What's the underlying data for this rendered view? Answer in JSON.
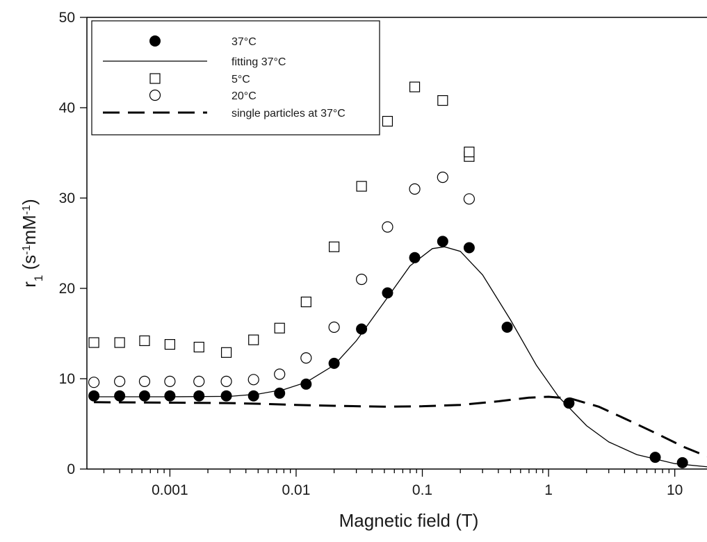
{
  "chart_data": {
    "type": "scatter",
    "xlabel": "Magnetic field (T)",
    "ylabel_parts": {
      "main": "r",
      "sub": "1",
      "unit_open": " (s",
      "unit_sup1": "-1",
      "unit_mid": "mM",
      "unit_sup2": "-1",
      "unit_close": ")"
    },
    "xscale": "log",
    "xlim": [
      0.00022,
      18
    ],
    "ylim": [
      0,
      50
    ],
    "x_ticks": [
      {
        "value": 0.001,
        "label": "0.001"
      },
      {
        "value": 0.01,
        "label": "0.01"
      },
      {
        "value": 0.1,
        "label": "0.1"
      },
      {
        "value": 1,
        "label": "1"
      },
      {
        "value": 10,
        "label": "10"
      }
    ],
    "y_ticks": [
      {
        "value": 0,
        "label": "0"
      },
      {
        "value": 10,
        "label": "10"
      },
      {
        "value": 20,
        "label": "20"
      },
      {
        "value": 30,
        "label": "30"
      },
      {
        "value": 40,
        "label": "40"
      },
      {
        "value": 50,
        "label": "50"
      }
    ],
    "legend_position": "top-left",
    "grid": false,
    "series": [
      {
        "name": "37°C",
        "marker": "filled-circle",
        "points": [
          [
            0.00025,
            8.1
          ],
          [
            0.0004,
            8.1
          ],
          [
            0.00063,
            8.1
          ],
          [
            0.001,
            8.1
          ],
          [
            0.0017,
            8.1
          ],
          [
            0.0028,
            8.1
          ],
          [
            0.0046,
            8.1
          ],
          [
            0.0074,
            8.4
          ],
          [
            0.012,
            9.4
          ],
          [
            0.02,
            11.7
          ],
          [
            0.033,
            15.5
          ],
          [
            0.053,
            19.5
          ],
          [
            0.087,
            23.4
          ],
          [
            0.145,
            25.2
          ],
          [
            0.235,
            24.5
          ],
          [
            0.47,
            15.7
          ],
          [
            1.45,
            7.3
          ],
          [
            7.0,
            1.3
          ],
          [
            11.5,
            0.7
          ]
        ]
      },
      {
        "name": "fitting 37°C",
        "marker": "solid-line",
        "points": [
          [
            0.00025,
            8.0
          ],
          [
            0.001,
            8.0
          ],
          [
            0.003,
            8.05
          ],
          [
            0.005,
            8.3
          ],
          [
            0.008,
            8.8
          ],
          [
            0.012,
            9.6
          ],
          [
            0.02,
            11.5
          ],
          [
            0.03,
            14.2
          ],
          [
            0.05,
            18.5
          ],
          [
            0.08,
            22.5
          ],
          [
            0.12,
            24.4
          ],
          [
            0.15,
            24.6
          ],
          [
            0.2,
            24.1
          ],
          [
            0.3,
            21.5
          ],
          [
            0.5,
            16.5
          ],
          [
            0.8,
            11.5
          ],
          [
            1.2,
            8.0
          ],
          [
            2.0,
            4.8
          ],
          [
            3.0,
            3.0
          ],
          [
            5.0,
            1.6
          ],
          [
            10.0,
            0.6
          ],
          [
            18.0,
            0.25
          ]
        ]
      },
      {
        "name": "5°C",
        "marker": "open-square",
        "points": [
          [
            0.00025,
            14.0
          ],
          [
            0.0004,
            14.0
          ],
          [
            0.00063,
            14.2
          ],
          [
            0.001,
            13.8
          ],
          [
            0.0017,
            13.5
          ],
          [
            0.0028,
            12.9
          ],
          [
            0.0046,
            14.3
          ],
          [
            0.0074,
            15.6
          ],
          [
            0.012,
            18.5
          ],
          [
            0.02,
            24.6
          ],
          [
            0.033,
            31.3
          ],
          [
            0.053,
            38.5
          ],
          [
            0.087,
            42.3
          ],
          [
            0.145,
            40.8
          ],
          [
            0.235,
            34.6
          ],
          [
            0.235,
            35.1
          ]
        ]
      },
      {
        "name": "20°C",
        "marker": "open-circle",
        "points": [
          [
            0.00025,
            9.6
          ],
          [
            0.0004,
            9.7
          ],
          [
            0.00063,
            9.7
          ],
          [
            0.001,
            9.7
          ],
          [
            0.0017,
            9.7
          ],
          [
            0.0028,
            9.7
          ],
          [
            0.0046,
            9.9
          ],
          [
            0.0074,
            10.5
          ],
          [
            0.012,
            12.3
          ],
          [
            0.02,
            15.7
          ],
          [
            0.033,
            21.0
          ],
          [
            0.053,
            26.8
          ],
          [
            0.087,
            31.0
          ],
          [
            0.145,
            32.3
          ],
          [
            0.235,
            29.9
          ]
        ]
      },
      {
        "name": "single particles at 37°C",
        "marker": "dashed-line",
        "points": [
          [
            0.00025,
            7.4
          ],
          [
            0.001,
            7.35
          ],
          [
            0.003,
            7.3
          ],
          [
            0.006,
            7.2
          ],
          [
            0.01,
            7.1
          ],
          [
            0.02,
            7.0
          ],
          [
            0.05,
            6.9
          ],
          [
            0.1,
            6.95
          ],
          [
            0.2,
            7.1
          ],
          [
            0.4,
            7.5
          ],
          [
            0.7,
            7.9
          ],
          [
            1.0,
            8.0
          ],
          [
            1.5,
            7.8
          ],
          [
            2.5,
            6.9
          ],
          [
            4.0,
            5.6
          ],
          [
            7.0,
            4.0
          ],
          [
            12.0,
            2.4
          ],
          [
            18.0,
            1.4
          ]
        ]
      }
    ]
  }
}
